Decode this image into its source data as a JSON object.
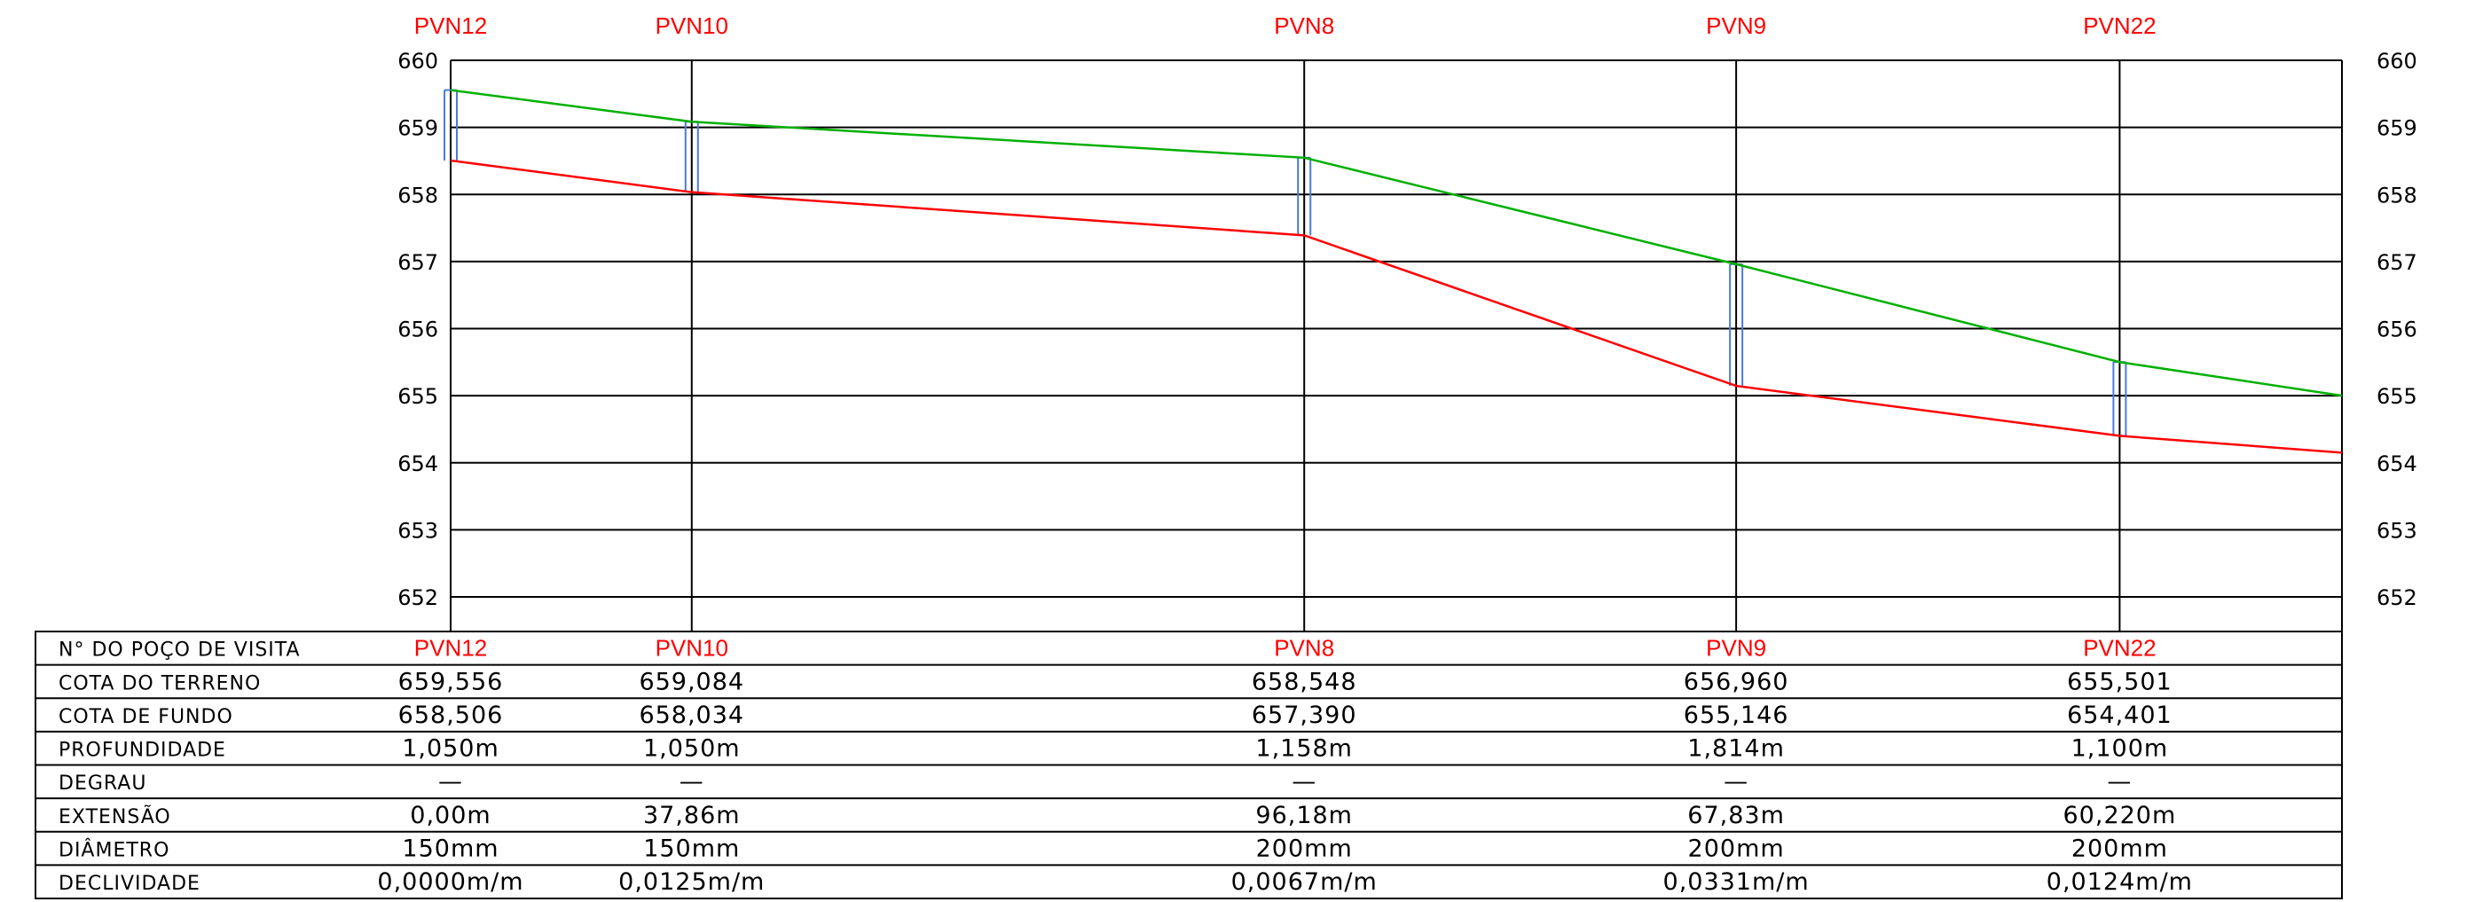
{
  "chart_data": {
    "type": "line",
    "x": [
      0,
      37.86,
      134.04,
      201.87,
      262.09
    ],
    "x_end": 297,
    "ylim": [
      652,
      660
    ],
    "y_ticks": [
      "652",
      "653",
      "654",
      "655",
      "656",
      "657",
      "658",
      "659",
      "660"
    ],
    "stations": [
      {
        "name": "PVN12",
        "terreno": 659.556,
        "fundo": 658.506
      },
      {
        "name": "PVN10",
        "terreno": 659.084,
        "fundo": 658.034
      },
      {
        "name": "PVN8",
        "terreno": 658.548,
        "fundo": 657.39
      },
      {
        "name": "PVN9",
        "terreno": 656.96,
        "fundo": 655.146
      },
      {
        "name": "PVN22",
        "terreno": 655.501,
        "fundo": 654.401
      }
    ],
    "terrain_end": 655.0,
    "invert_end": 654.15,
    "series": [
      {
        "color": "#00b000"
      },
      {
        "color": "#ff0000"
      }
    ],
    "manhole_color": "#4a7bdc"
  },
  "table": {
    "headers": [
      "N° DO POÇO DE VISITA",
      "COTA DO TERRENO",
      "COTA DE FUNDO",
      "PROFUNDIDADE",
      "DEGRAU",
      "EXTENSÃO",
      "DIÂMETRO",
      "DECLIVIDADE"
    ],
    "rows": [
      [
        "PVN12",
        "PVN10",
        "PVN8",
        "PVN9",
        "PVN22"
      ],
      [
        "659,556",
        "659,084",
        "658,548",
        "656,960",
        "655,501"
      ],
      [
        "658,506",
        "658,034",
        "657,390",
        "655,146",
        "654,401"
      ],
      [
        "1,050m",
        "1,050m",
        "1,158m",
        "1,814m",
        "1,100m"
      ],
      [
        "—",
        "—",
        "—",
        "—",
        "—"
      ],
      [
        "0,00m",
        "37,86m",
        "96,18m",
        "67,83m",
        "60,220m"
      ],
      [
        "150mm",
        "150mm",
        "200mm",
        "200mm",
        "200mm"
      ],
      [
        "0,0000m/m",
        "0,0125m/m",
        "0,0067m/m",
        "0,0331m/m",
        "0,0124m/m"
      ]
    ]
  }
}
